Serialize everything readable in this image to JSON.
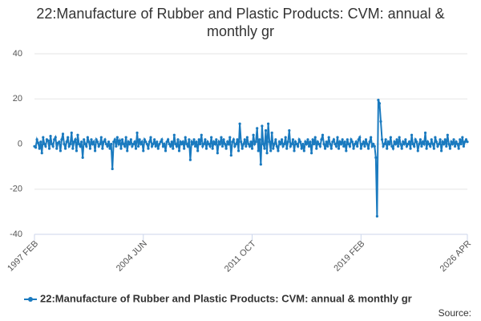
{
  "chart_data": {
    "type": "line",
    "title": "22:Manufacture of Rubber and Plastic Products: CVM: annual & monthly gr",
    "source": "Source:",
    "categories": [
      "1997 FEB",
      null,
      null,
      null,
      null,
      null,
      null,
      null,
      null,
      null,
      null,
      null,
      null,
      null,
      null,
      null,
      null,
      null,
      null,
      null,
      null,
      null,
      null,
      null,
      null,
      null,
      null,
      null,
      null,
      null,
      null,
      null,
      null,
      null,
      null,
      null,
      null,
      null,
      null,
      null,
      null,
      null,
      null,
      null,
      null,
      null,
      null,
      null,
      null,
      null,
      null,
      null,
      null,
      null,
      null,
      null,
      null,
      null,
      null,
      null,
      null,
      null,
      null,
      null,
      null,
      null,
      null,
      null,
      null,
      null,
      null,
      null,
      null,
      null,
      null,
      null,
      null,
      null,
      null,
      null,
      null,
      null,
      null,
      null,
      null,
      null,
      null,
      null,
      "2004 JUN",
      null,
      null,
      null,
      null,
      null,
      null,
      null,
      null,
      null,
      null,
      null,
      null,
      null,
      null,
      null,
      null,
      null,
      null,
      null,
      null,
      null,
      null,
      null,
      null,
      null,
      null,
      null,
      null,
      null,
      null,
      null,
      null,
      null,
      null,
      null,
      null,
      null,
      null,
      null,
      null,
      null,
      null,
      null,
      null,
      null,
      null,
      null,
      null,
      null,
      null,
      null,
      null,
      null,
      null,
      null,
      null,
      null,
      null,
      null,
      null,
      null,
      null,
      null,
      null,
      null,
      null,
      null,
      null,
      null,
      null,
      null,
      null,
      null,
      null,
      null,
      null,
      null,
      null,
      null,
      null,
      null,
      null,
      null,
      null,
      null,
      null,
      null,
      "2011 OCT",
      null,
      null,
      null,
      null,
      null,
      null,
      null,
      null,
      null,
      null,
      null,
      null,
      null,
      null,
      null,
      null,
      null,
      null,
      null,
      null,
      null,
      null,
      null,
      null,
      null,
      null,
      null,
      null,
      null,
      null,
      null,
      null,
      null,
      null,
      null,
      null,
      null,
      null,
      null,
      null,
      null,
      null,
      null,
      null,
      null,
      null,
      null,
      null,
      null,
      null,
      null,
      null,
      null,
      null,
      null,
      null,
      null,
      null,
      null,
      null,
      null,
      null,
      null,
      null,
      null,
      null,
      null,
      null,
      null,
      null,
      null,
      null,
      null,
      null,
      null,
      null,
      null,
      null,
      null,
      null,
      null,
      null,
      null,
      null,
      null,
      null,
      null,
      "2019 FEB",
      null,
      null,
      null,
      null,
      null,
      null,
      null,
      null,
      null,
      null,
      null,
      null,
      null,
      null,
      null,
      null,
      null,
      null,
      null,
      null,
      null,
      null,
      null,
      null,
      null,
      null,
      null,
      null,
      null,
      null,
      null,
      null,
      null,
      null,
      null,
      null,
      null,
      null,
      null,
      null,
      null,
      null,
      null,
      null,
      null,
      null,
      null,
      null,
      null,
      null,
      null,
      null,
      null,
      null,
      null,
      null,
      null,
      null,
      null,
      null,
      null,
      null,
      null,
      null,
      null,
      null,
      null,
      null,
      null,
      null,
      null,
      null,
      null,
      null,
      null,
      null,
      null,
      null,
      null,
      null,
      null,
      null,
      null,
      null,
      null,
      "2026 APR"
    ],
    "series": [
      {
        "name": "22:Manufacture of Rubber and Plastic Products: CVM: annual & monthly gr",
        "color": "#1a7abf",
        "values": [
          -1,
          -1.5,
          2,
          0.5,
          -2,
          1,
          -4,
          3,
          0,
          -1,
          2,
          1.5,
          -2,
          3.5,
          0,
          -1,
          2,
          3,
          -2,
          0.5,
          1,
          -3,
          2,
          4.5,
          0,
          -2,
          1,
          3,
          -1,
          0,
          5,
          -2,
          1,
          2,
          -3,
          4,
          0,
          -1,
          1,
          -6,
          2,
          0,
          -1,
          3,
          1,
          -2,
          2,
          0,
          1,
          -3,
          2,
          1,
          -1,
          0,
          3,
          -2,
          1,
          2,
          0,
          -1,
          1,
          -2,
          0,
          -11,
          1,
          2,
          -1,
          3,
          0,
          1.5,
          -2,
          2,
          0,
          -1,
          3,
          -3,
          1,
          0,
          2,
          -1,
          0,
          1,
          -2,
          5,
          -1,
          2,
          0,
          1,
          -3,
          2,
          1,
          0,
          -2,
          1,
          3,
          -1,
          0,
          2,
          -1,
          1,
          -2,
          0,
          1,
          2,
          -1,
          0,
          -3,
          1,
          2,
          0,
          -1,
          1,
          -2,
          4,
          0,
          -1,
          2,
          -3,
          1,
          0,
          1,
          -2,
          3,
          0,
          -1,
          2,
          -7,
          1,
          0,
          2,
          -1,
          1,
          -3,
          2,
          0,
          4,
          -1,
          0,
          2,
          -2,
          1,
          0,
          -1,
          3,
          -2,
          1,
          0,
          2,
          -4,
          1,
          0,
          3,
          -1,
          2,
          0,
          -2,
          1,
          0,
          3,
          -5,
          1,
          2,
          -1,
          0,
          2,
          -3,
          9,
          1,
          -2,
          0,
          2,
          -1,
          3,
          0,
          -1,
          1,
          -2,
          4,
          0,
          1,
          7,
          -3,
          2,
          -9,
          8,
          0,
          -2,
          6,
          -4,
          9,
          1,
          -3,
          5,
          -2,
          0,
          2,
          -1,
          -3,
          1,
          0,
          2,
          -1,
          0,
          3,
          -2,
          1,
          6,
          -1,
          0,
          2,
          -3,
          1,
          0,
          -1,
          2,
          1,
          -2,
          0,
          -3,
          1,
          0,
          2,
          -1,
          1,
          -4,
          2,
          0,
          3,
          -2,
          1,
          0,
          -1,
          2,
          4,
          0,
          -2,
          1,
          -1,
          3,
          0,
          -2,
          1,
          2,
          0,
          -1,
          3,
          -2,
          1,
          0,
          2,
          -1,
          1,
          -3,
          2,
          0,
          -1,
          2,
          1,
          -2,
          0,
          1,
          -1,
          2,
          3,
          -2,
          0,
          1,
          -1,
          2,
          0,
          -2,
          1,
          3,
          -1,
          0,
          -1,
          -6,
          -32,
          19.5,
          18,
          10,
          2,
          -1,
          0,
          2,
          -2,
          1,
          0,
          3,
          -1,
          -2,
          1,
          0,
          2,
          -1,
          3,
          0,
          -2,
          1,
          0,
          2,
          -1,
          0,
          1,
          -2,
          4,
          0,
          -1,
          2,
          1,
          -3,
          0,
          2,
          -1,
          1,
          0,
          5,
          -2,
          1,
          0,
          -1,
          2,
          0,
          -2,
          3,
          1,
          -1,
          0,
          2,
          -3,
          1,
          0,
          2,
          -1,
          4,
          0,
          -2,
          1,
          0,
          2,
          -1,
          1,
          0,
          -2,
          2,
          0,
          3,
          -1,
          1,
          2,
          1
        ]
      }
    ],
    "ylim": [
      -40,
      40
    ],
    "yticks": [
      -40,
      -20,
      0,
      20,
      40
    ],
    "grid": true
  }
}
